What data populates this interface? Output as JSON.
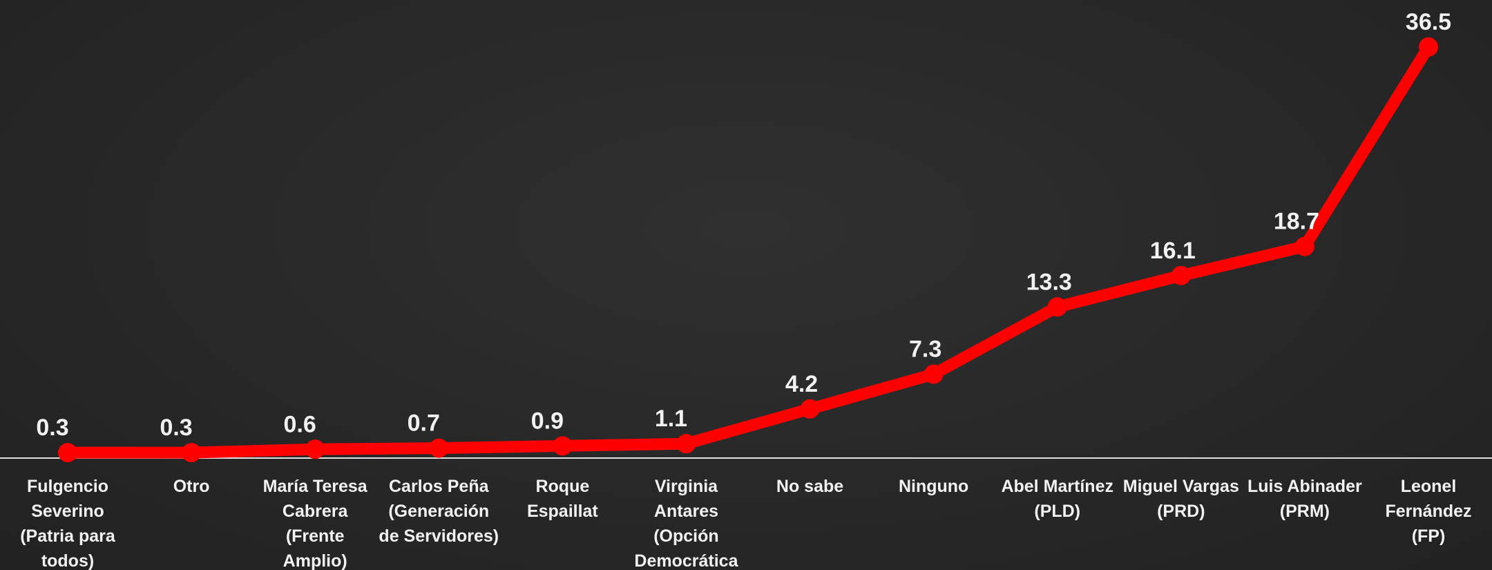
{
  "chart_data": {
    "type": "line",
    "categories": [
      [
        "Fulgencio",
        "Severino",
        "(Patria para",
        "todos)"
      ],
      [
        "Otro"
      ],
      [
        "María Teresa",
        "Cabrera",
        "(Frente",
        "Amplio)"
      ],
      [
        "Carlos Peña",
        "(Generación",
        "de Servidores)"
      ],
      [
        "Roque",
        "Espaillat"
      ],
      [
        "Virginia",
        "Antares",
        "(Opción",
        "Democrática"
      ],
      [
        "No sabe"
      ],
      [
        "Ninguno"
      ],
      [
        "Abel Martínez",
        "(PLD)"
      ],
      [
        "Miguel Vargas",
        "(PRD)"
      ],
      [
        "Luis Abinader",
        "(PRM)"
      ],
      [
        "Leonel",
        "Fernández",
        "(FP)"
      ]
    ],
    "values": [
      0.3,
      0.3,
      0.6,
      0.7,
      0.9,
      1.1,
      4.2,
      7.3,
      13.3,
      16.1,
      18.7,
      36.5
    ],
    "value_labels": [
      "0.3",
      "0.3",
      "0.6",
      "0.7",
      "0.9",
      "1.1",
      "4.2",
      "7.3",
      "13.3",
      "16.1",
      "18.7",
      "36.5"
    ],
    "title": "",
    "xlabel": "",
    "ylabel": "",
    "ylim": [
      0,
      36.5
    ],
    "grid": false,
    "legend": "none",
    "colors": {
      "line": "#ff0000",
      "axis": "#e0e0e0",
      "text": "#f2f2f2",
      "background": "#2a2a2a"
    }
  }
}
